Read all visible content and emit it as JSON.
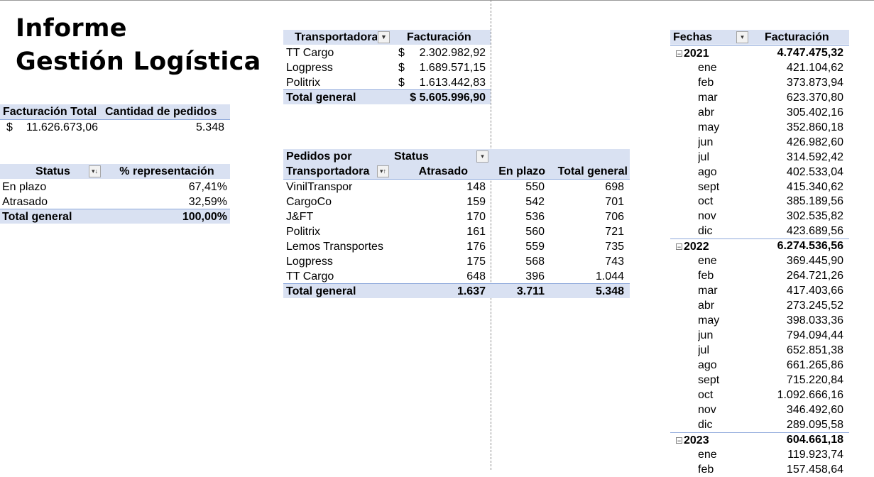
{
  "title": {
    "line1": "Informe",
    "line2": "Gestión Logística"
  },
  "summary": {
    "headers": [
      "Facturación Total",
      "Cantidad de pedidos"
    ],
    "currency": "$",
    "facturacion_total": "11.626.673,06",
    "cantidad_pedidos": "5.348"
  },
  "status_table": {
    "headers": [
      "Status",
      "% representación"
    ],
    "rows": [
      {
        "label": "En plazo",
        "value": "67,41%"
      },
      {
        "label": "Atrasado",
        "value": "32,59%"
      }
    ],
    "total": {
      "label": "Total general",
      "value": "100,00%"
    }
  },
  "carrier_billing": {
    "headers": [
      "Transportadora",
      "Facturación"
    ],
    "currency": "$",
    "rows": [
      {
        "name": "TT Cargo",
        "value": "2.302.982,92"
      },
      {
        "name": "Logpress",
        "value": "1.689.571,15"
      },
      {
        "name": "Politrix",
        "value": "1.613.442,83"
      }
    ],
    "total": {
      "label": "Total general",
      "value": "$ 5.605.996,90"
    }
  },
  "orders_table": {
    "header_top_left": "Pedidos por",
    "header_status": "Status",
    "header_row": [
      "Transportadora",
      "Atrasado",
      "En plazo",
      "Total general"
    ],
    "rows": [
      {
        "name": "VinilTranspor",
        "atrasado": "148",
        "en_plazo": "550",
        "total": "698"
      },
      {
        "name": "CargoCo",
        "atrasado": "159",
        "en_plazo": "542",
        "total": "701"
      },
      {
        "name": "J&FT",
        "atrasado": "170",
        "en_plazo": "536",
        "total": "706"
      },
      {
        "name": "Politrix",
        "atrasado": "161",
        "en_plazo": "560",
        "total": "721"
      },
      {
        "name": "Lemos Transportes",
        "atrasado": "176",
        "en_plazo": "559",
        "total": "735"
      },
      {
        "name": "Logpress",
        "atrasado": "175",
        "en_plazo": "568",
        "total": "743"
      },
      {
        "name": "TT Cargo",
        "atrasado": "648",
        "en_plazo": "396",
        "total": "1.044"
      }
    ],
    "total": {
      "label": "Total general",
      "atrasado": "1.637",
      "en_plazo": "3.711",
      "total": "5.348"
    }
  },
  "dates_table": {
    "headers": [
      "Fechas",
      "Facturación"
    ],
    "years": [
      {
        "year": "2021",
        "total": "4.747.475,32",
        "months": [
          {
            "m": "ene",
            "v": "421.104,62"
          },
          {
            "m": "feb",
            "v": "373.873,94"
          },
          {
            "m": "mar",
            "v": "623.370,80"
          },
          {
            "m": "abr",
            "v": "305.402,16"
          },
          {
            "m": "may",
            "v": "352.860,18"
          },
          {
            "m": "jun",
            "v": "426.982,60"
          },
          {
            "m": "jul",
            "v": "314.592,42"
          },
          {
            "m": "ago",
            "v": "402.533,04"
          },
          {
            "m": "sept",
            "v": "415.340,62"
          },
          {
            "m": "oct",
            "v": "385.189,56"
          },
          {
            "m": "nov",
            "v": "302.535,82"
          },
          {
            "m": "dic",
            "v": "423.689,56"
          }
        ]
      },
      {
        "year": "2022",
        "total": "6.274.536,56",
        "months": [
          {
            "m": "ene",
            "v": "369.445,90"
          },
          {
            "m": "feb",
            "v": "264.721,26"
          },
          {
            "m": "mar",
            "v": "417.403,66"
          },
          {
            "m": "abr",
            "v": "273.245,52"
          },
          {
            "m": "may",
            "v": "398.033,36"
          },
          {
            "m": "jun",
            "v": "794.094,44"
          },
          {
            "m": "jul",
            "v": "652.851,38"
          },
          {
            "m": "ago",
            "v": "661.265,86"
          },
          {
            "m": "sept",
            "v": "715.220,84"
          },
          {
            "m": "oct",
            "v": "1.092.666,16"
          },
          {
            "m": "nov",
            "v": "346.492,60"
          },
          {
            "m": "dic",
            "v": "289.095,58"
          }
        ]
      },
      {
        "year": "2023",
        "total": "604.661,18",
        "months": [
          {
            "m": "ene",
            "v": "119.923,74"
          },
          {
            "m": "feb",
            "v": "157.458,64"
          }
        ]
      }
    ]
  },
  "icons": {
    "filter_active": "funnel-filter-icon",
    "dropdown": "dropdown-arrow-icon",
    "sort_dropdown": "sort-dropdown-icon",
    "collapse": "collapse-minus-icon"
  },
  "colors": {
    "header_fill": "#d9e1f2",
    "header_border": "#8ea9db"
  }
}
